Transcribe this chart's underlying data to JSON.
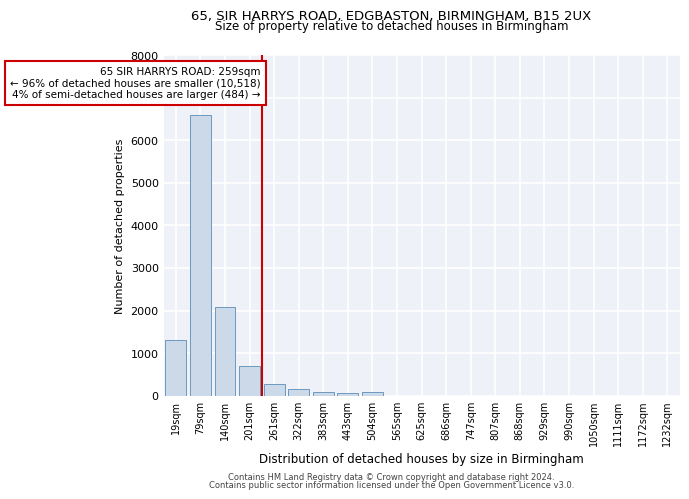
{
  "title_line1": "65, SIR HARRYS ROAD, EDGBASTON, BIRMINGHAM, B15 2UX",
  "title_line2": "Size of property relative to detached houses in Birmingham",
  "xlabel": "Distribution of detached houses by size in Birmingham",
  "ylabel": "Number of detached properties",
  "footer_line1": "Contains HM Land Registry data © Crown copyright and database right 2024.",
  "footer_line2": "Contains public sector information licensed under the Open Government Licence v3.0.",
  "annotation_line1": "65 SIR HARRYS ROAD: 259sqm",
  "annotation_line2": "← 96% of detached houses are smaller (10,518)",
  "annotation_line3": "4% of semi-detached houses are larger (484) →",
  "bar_categories": [
    "19sqm",
    "79sqm",
    "140sqm",
    "201sqm",
    "261sqm",
    "322sqm",
    "383sqm",
    "443sqm",
    "504sqm",
    "565sqm",
    "625sqm",
    "686sqm",
    "747sqm",
    "807sqm",
    "868sqm",
    "929sqm",
    "990sqm",
    "1050sqm",
    "1111sqm",
    "1172sqm",
    "1232sqm"
  ],
  "bar_values": [
    1300,
    6600,
    2080,
    690,
    270,
    150,
    90,
    55,
    90,
    0,
    0,
    0,
    0,
    0,
    0,
    0,
    0,
    0,
    0,
    0,
    0
  ],
  "bar_color": "#ccd9e8",
  "bar_edge_color": "#5b8db8",
  "red_line_x": 3.5,
  "red_line_color": "#cc0000",
  "annotation_box_color": "#cc0000",
  "bg_color": "#eef2f8",
  "grid_color": "#ffffff",
  "ylim": [
    0,
    8000
  ],
  "yticks": [
    0,
    1000,
    2000,
    3000,
    4000,
    5000,
    6000,
    7000,
    8000
  ]
}
